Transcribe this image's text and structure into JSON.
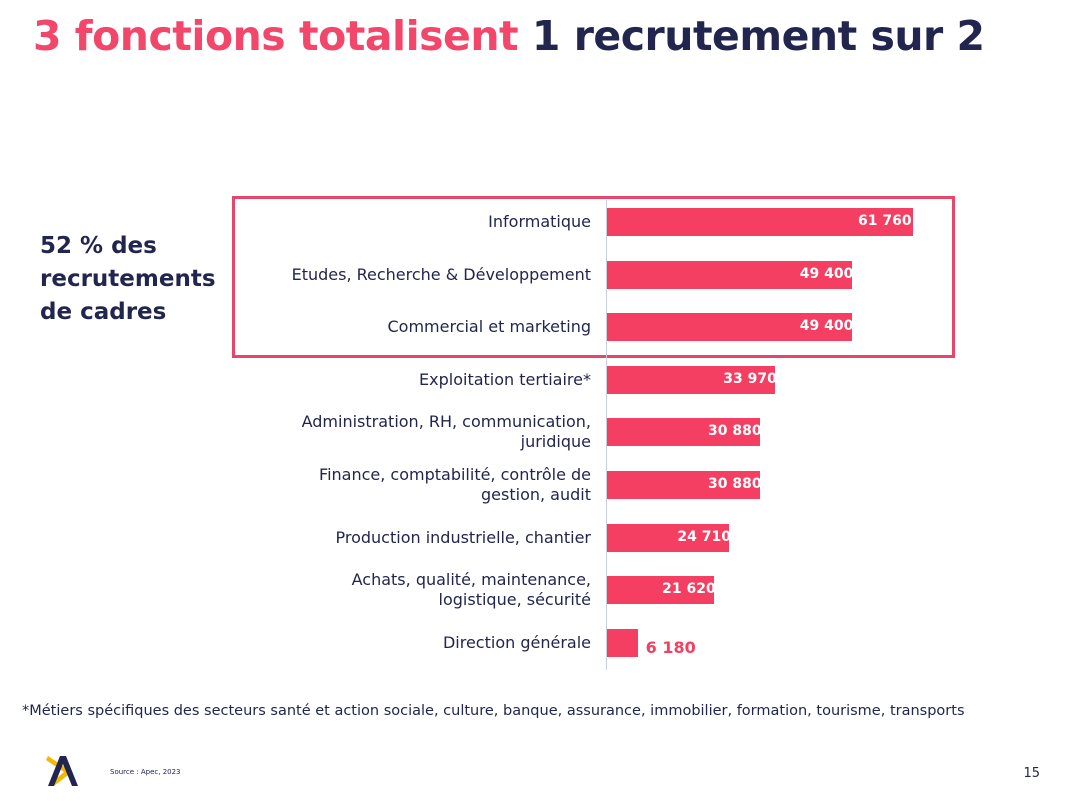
{
  "title": {
    "part1": "3 fonctions totalisent",
    "part2": "1 recrutement sur 2"
  },
  "callout": "52 % des recrutements de cadres",
  "colors": {
    "bar": "#f43f63",
    "title_accent": "#f2476b",
    "navy": "#22264f",
    "highlight_box": "#e8456a"
  },
  "chart_data": {
    "type": "bar",
    "orientation": "horizontal",
    "categories": [
      "Informatique",
      "Etudes, Recherche & Développement",
      "Commercial et marketing",
      "Exploitation tertiaire*",
      "Administration, RH, communication, juridique",
      "Finance, comptabilité, contrôle de gestion, audit",
      "Production industrielle, chantier",
      "Achats, qualité, maintenance, logistique, sécurité",
      "Direction générale"
    ],
    "values": [
      61760,
      49400,
      49400,
      33970,
      30880,
      30880,
      24710,
      21620,
      6180
    ],
    "value_labels": [
      "61 760",
      "49 400",
      "49 400",
      "33 970",
      "30 880",
      "30 880",
      "24 710",
      "21 620",
      "6 180"
    ],
    "highlighted": [
      "Informatique",
      "Etudes, Recherche & Développement",
      "Commercial et marketing"
    ],
    "grid": false
  },
  "footnote": "*Métiers spécifiques des secteurs santé et action sociale, culture, banque, assurance, immobilier, formation, tourisme, transports",
  "source": "Source : Apec, 2023",
  "page_number": "15",
  "logo": "apec-logo"
}
